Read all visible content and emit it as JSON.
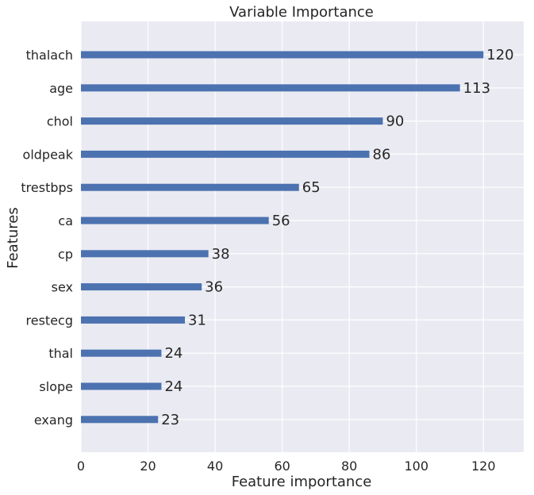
{
  "chart_data": {
    "type": "bar",
    "orientation": "horizontal",
    "title": "Variable Importance",
    "xlabel": "Feature importance",
    "ylabel": "Features",
    "categories": [
      "thalach",
      "age",
      "chol",
      "oldpeak",
      "trestbps",
      "ca",
      "cp",
      "sex",
      "restecg",
      "thal",
      "slope",
      "exang"
    ],
    "values": [
      120,
      113,
      90,
      86,
      65,
      56,
      38,
      36,
      31,
      24,
      24,
      23
    ],
    "xlim": [
      0,
      132
    ],
    "xticks": [
      0,
      20,
      40,
      60,
      80,
      100,
      120
    ],
    "grid": true,
    "bar_color": "#4c72b0",
    "background_color": "#eaeaf2",
    "grid_color": "#ffffff"
  }
}
